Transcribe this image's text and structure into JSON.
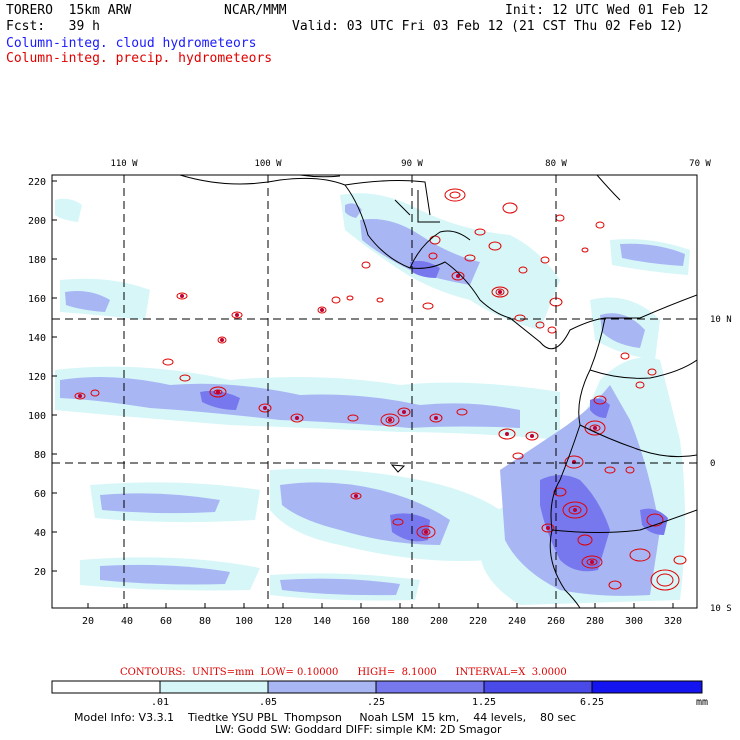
{
  "header": {
    "model": "TORERO  15km ARW",
    "org": "NCAR/MMM",
    "init": "Init: 12 UTC Wed 01 Feb 12",
    "fcst": "Fcst:   39 h",
    "valid": "Valid: 03 UTC Fri 03 Feb 12 (21 CST Thu 02 Feb 12)",
    "field1": "Column-integ. cloud hydrometeors",
    "field2": "Column-integ. precip. hydrometeors"
  },
  "map": {
    "lon_labels": [
      "110 W",
      "100 W",
      "90 W",
      "80 W",
      "70 W"
    ],
    "lat_labels": [
      "10 N",
      "0",
      "10 S"
    ],
    "y_ticks": [
      "220",
      "200",
      "180",
      "160",
      "140",
      "120",
      "100",
      "80",
      "60",
      "40",
      "20"
    ],
    "x_ticks": [
      "20",
      "40",
      "60",
      "80",
      "100",
      "120",
      "140",
      "160",
      "180",
      "200",
      "220",
      "240",
      "260",
      "280",
      "300",
      "320"
    ],
    "colors": {
      "frame": "#000000",
      "contour": "#e00000"
    }
  },
  "contours_info": {
    "label": "CONTOURS:  UNITS=mm  LOW= 0.10000      HIGH=  8.1000      INTERVAL=X  3.0000"
  },
  "colorbar": {
    "labels": [
      ".01",
      ".05",
      ".25",
      "1.25",
      "6.25"
    ],
    "units": "mm",
    "colors": [
      "#ffffff",
      "#d6f6f8",
      "#a8b6f4",
      "#7878ee",
      "#4a4ae8",
      "#1414f0"
    ]
  },
  "model_info": {
    "line1": "Model Info: V3.3.1    Tiedtke YSU PBL  Thompson     Noah LSM  15 km,    44 levels,    80 sec",
    "line2": "LW: Godd SW: Goddard DIFF: simple KM: 2D Smagor"
  }
}
